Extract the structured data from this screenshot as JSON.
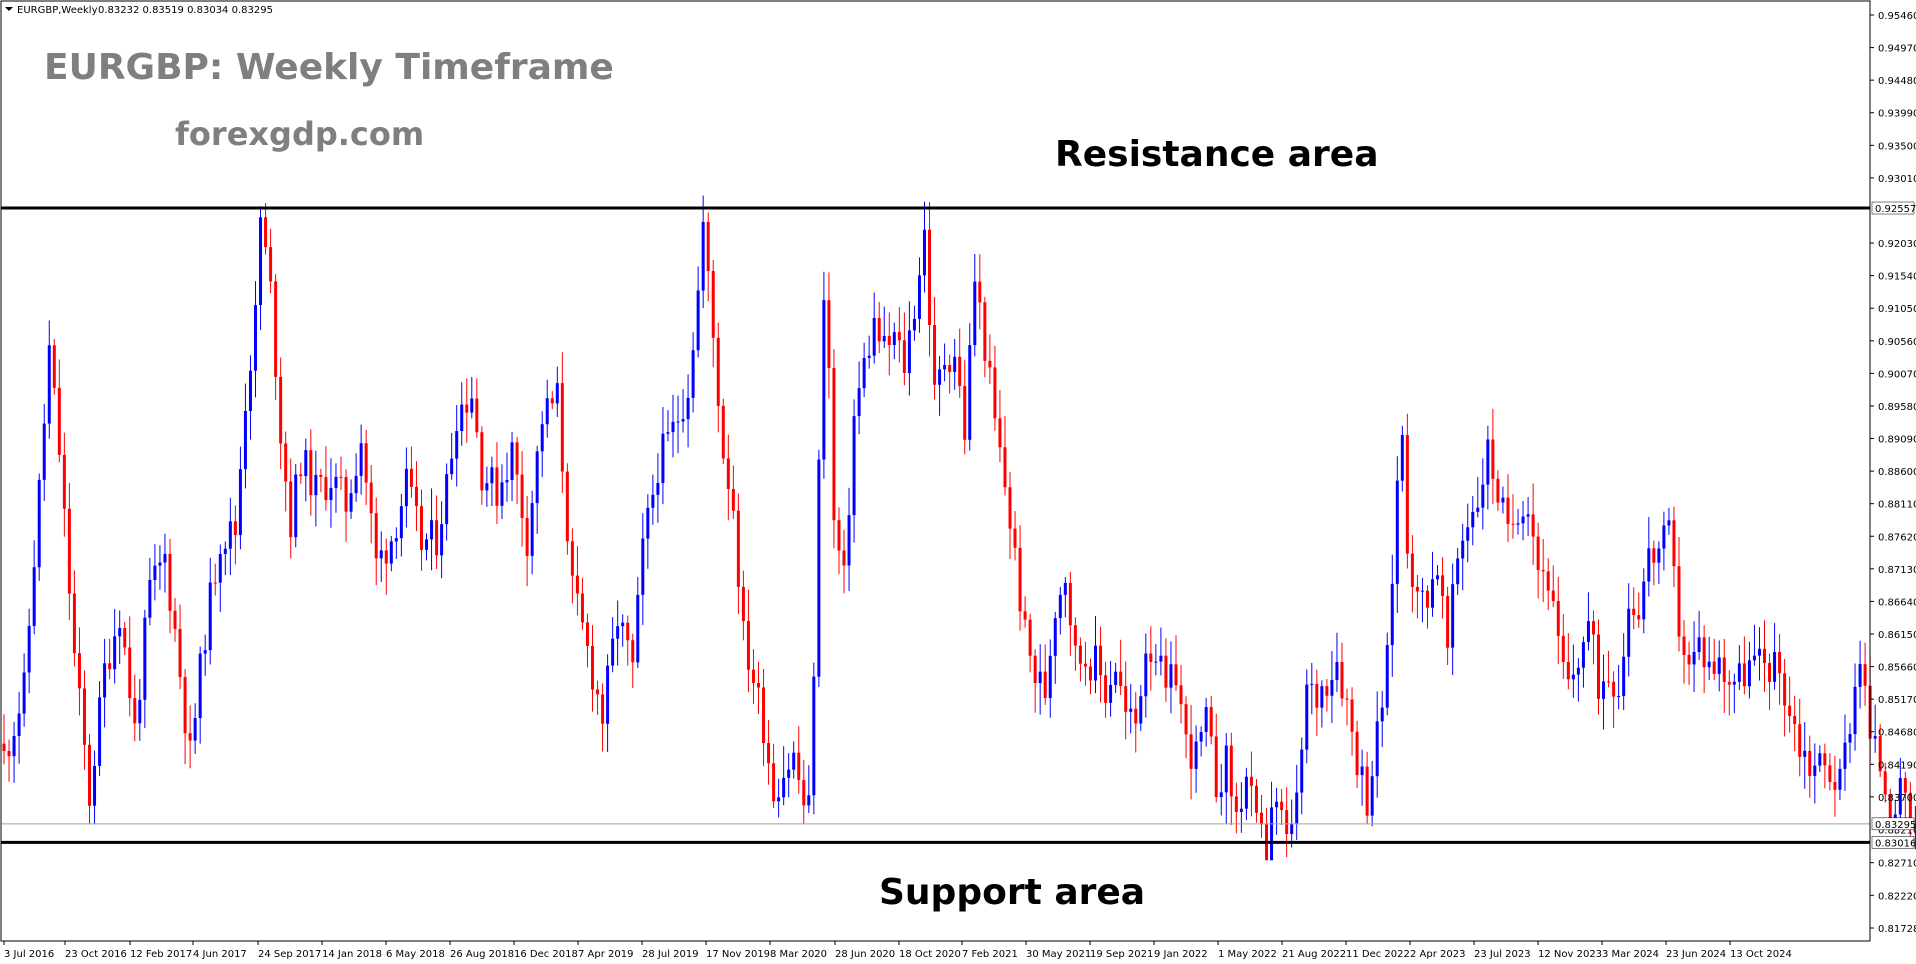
{
  "header": {
    "symbol_label": "EURGBP,Weekly",
    "ohlc_label": "0.83232 0.83519 0.83034 0.83295"
  },
  "annotations": {
    "title": "EURGBP: Weekly Timeframe",
    "website": "forexgdp.com",
    "resistance_label": "Resistance area",
    "support_label": "Support area"
  },
  "colors": {
    "bull": "#0000ff",
    "bear": "#ff0000",
    "level_line": "#000000",
    "current_price_line": "#a0a0a0",
    "frame": "#000000",
    "title_gray": "#7f7f7f"
  },
  "chart_data": {
    "type": "candlestick",
    "symbol": "EURGBP",
    "timeframe": "Weekly",
    "ylim": [
      0.81728,
      0.9546
    ],
    "y_ticks": [
      "0.95460",
      "0.94970",
      "0.94480",
      "0.93990",
      "0.93500",
      "0.93010",
      "0.92030",
      "0.91540",
      "0.91050",
      "0.90560",
      "0.90070",
      "0.89580",
      "0.89090",
      "0.88600",
      "0.88110",
      "0.87620",
      "0.87130",
      "0.86640",
      "0.86150",
      "0.85660",
      "0.85170",
      "0.84680",
      "0.84190",
      "0.83700",
      "0.82710",
      "0.82220",
      "0.81728"
    ],
    "x_ticks": [
      "3 Jul 2016",
      "23 Oct 2016",
      "12 Feb 2017",
      "4 Jun 2017",
      "24 Sep 2017",
      "14 Jan 2018",
      "6 May 2018",
      "26 Aug 2018",
      "16 Dec 2018",
      "7 Apr 2019",
      "28 Jul 2019",
      "17 Nov 2019",
      "8 Mar 2020",
      "28 Jun 2020",
      "18 Oct 2020",
      "7 Feb 2021",
      "30 May 2021",
      "19 Sep 2021",
      "9 Jan 2022",
      "1 May 2022",
      "21 Aug 2022",
      "11 Dec 2022",
      "2 Apr 2023",
      "23 Jul 2023",
      "12 Nov 2023",
      "3 Mar 2024",
      "23 Jun 2024",
      "13 Oct 2024"
    ],
    "levels": [
      {
        "name": "Resistance area",
        "value": 0.92557,
        "label": "0.92557"
      },
      {
        "name": "Support area",
        "value": 0.83016,
        "label": "0.83016"
      }
    ],
    "current_price": {
      "value": 0.83295,
      "label": "0.83295"
    },
    "extra_axis_label": "0.83210",
    "close_path": [
      [
        0,
        0.843
      ],
      [
        4,
        0.853
      ],
      [
        7,
        0.883
      ],
      [
        9,
        0.904
      ],
      [
        11,
        0.889
      ],
      [
        14,
        0.858
      ],
      [
        17,
        0.837
      ],
      [
        20,
        0.856
      ],
      [
        23,
        0.865
      ],
      [
        26,
        0.847
      ],
      [
        29,
        0.868
      ],
      [
        32,
        0.873
      ],
      [
        34,
        0.862
      ],
      [
        37,
        0.843
      ],
      [
        40,
        0.862
      ],
      [
        43,
        0.876
      ],
      [
        46,
        0.877
      ],
      [
        48,
        0.897
      ],
      [
        50,
        0.909
      ],
      [
        51,
        0.924
      ],
      [
        53,
        0.913
      ],
      [
        55,
        0.892
      ],
      [
        57,
        0.878
      ],
      [
        59,
        0.888
      ],
      [
        62,
        0.883
      ],
      [
        65,
        0.885
      ],
      [
        68,
        0.881
      ],
      [
        71,
        0.891
      ],
      [
        74,
        0.872
      ],
      [
        77,
        0.876
      ],
      [
        80,
        0.884
      ],
      [
        83,
        0.875
      ],
      [
        86,
        0.876
      ],
      [
        88,
        0.884
      ],
      [
        90,
        0.895
      ],
      [
        93,
        0.898
      ],
      [
        95,
        0.886
      ],
      [
        98,
        0.883
      ],
      [
        101,
        0.889
      ],
      [
        104,
        0.876
      ],
      [
        107,
        0.894
      ],
      [
        110,
        0.897
      ],
      [
        113,
        0.868
      ],
      [
        116,
        0.859
      ],
      [
        119,
        0.849
      ],
      [
        122,
        0.864
      ],
      [
        125,
        0.856
      ],
      [
        127,
        0.874
      ],
      [
        130,
        0.887
      ],
      [
        133,
        0.892
      ],
      [
        136,
        0.899
      ],
      [
        138,
        0.913
      ],
      [
        139,
        0.923
      ],
      [
        141,
        0.906
      ],
      [
        143,
        0.889
      ],
      [
        145,
        0.881
      ],
      [
        147,
        0.861
      ],
      [
        149,
        0.855
      ],
      [
        151,
        0.848
      ],
      [
        153,
        0.838
      ],
      [
        155,
        0.841
      ],
      [
        157,
        0.843
      ],
      [
        159,
        0.836
      ],
      [
        160,
        0.835
      ],
      [
        161,
        0.857
      ],
      [
        162,
        0.886
      ],
      [
        163,
        0.914
      ],
      [
        164,
        0.901
      ],
      [
        165,
        0.878
      ],
      [
        167,
        0.869
      ],
      [
        169,
        0.894
      ],
      [
        171,
        0.902
      ],
      [
        173,
        0.908
      ],
      [
        175,
        0.904
      ],
      [
        177,
        0.906
      ],
      [
        179,
        0.902
      ],
      [
        181,
        0.911
      ],
      [
        183,
        0.922
      ],
      [
        185,
        0.897
      ],
      [
        187,
        0.903
      ],
      [
        189,
        0.904
      ],
      [
        191,
        0.892
      ],
      [
        193,
        0.915
      ],
      [
        195,
        0.905
      ],
      [
        197,
        0.893
      ],
      [
        199,
        0.884
      ],
      [
        201,
        0.873
      ],
      [
        203,
        0.861
      ],
      [
        205,
        0.855
      ],
      [
        207,
        0.853
      ],
      [
        209,
        0.866
      ],
      [
        211,
        0.871
      ],
      [
        213,
        0.858
      ],
      [
        215,
        0.858
      ],
      [
        217,
        0.857
      ],
      [
        219,
        0.853
      ],
      [
        221,
        0.857
      ],
      [
        223,
        0.849
      ],
      [
        225,
        0.848
      ],
      [
        227,
        0.86
      ],
      [
        229,
        0.859
      ],
      [
        231,
        0.852
      ],
      [
        233,
        0.856
      ],
      [
        235,
        0.845
      ],
      [
        237,
        0.843
      ],
      [
        239,
        0.848
      ],
      [
        241,
        0.839
      ],
      [
        243,
        0.842
      ],
      [
        245,
        0.834
      ],
      [
        247,
        0.84
      ],
      [
        249,
        0.832
      ],
      [
        251,
        0.829
      ],
      [
        253,
        0.836
      ],
      [
        255,
        0.831
      ],
      [
        257,
        0.835
      ],
      [
        259,
        0.853
      ],
      [
        261,
        0.852
      ],
      [
        263,
        0.855
      ],
      [
        265,
        0.858
      ],
      [
        267,
        0.851
      ],
      [
        269,
        0.843
      ],
      [
        271,
        0.837
      ],
      [
        273,
        0.846
      ],
      [
        275,
        0.857
      ],
      [
        277,
        0.884
      ],
      [
        278,
        0.892
      ],
      [
        279,
        0.876
      ],
      [
        281,
        0.866
      ],
      [
        283,
        0.868
      ],
      [
        285,
        0.872
      ],
      [
        287,
        0.859
      ],
      [
        289,
        0.873
      ],
      [
        291,
        0.879
      ],
      [
        293,
        0.882
      ],
      [
        295,
        0.889
      ],
      [
        297,
        0.883
      ],
      [
        299,
        0.876
      ],
      [
        301,
        0.881
      ],
      [
        303,
        0.882
      ],
      [
        305,
        0.872
      ],
      [
        307,
        0.87
      ],
      [
        309,
        0.859
      ],
      [
        311,
        0.853
      ],
      [
        313,
        0.858
      ],
      [
        315,
        0.863
      ],
      [
        317,
        0.854
      ],
      [
        319,
        0.856
      ],
      [
        321,
        0.854
      ],
      [
        323,
        0.866
      ],
      [
        325,
        0.866
      ],
      [
        327,
        0.873
      ],
      [
        329,
        0.874
      ],
      [
        331,
        0.876
      ],
      [
        333,
        0.863
      ],
      [
        335,
        0.856
      ],
      [
        337,
        0.86
      ],
      [
        339,
        0.857
      ],
      [
        341,
        0.857
      ],
      [
        343,
        0.855
      ],
      [
        345,
        0.855
      ],
      [
        347,
        0.857
      ],
      [
        349,
        0.857
      ],
      [
        351,
        0.857
      ],
      [
        353,
        0.856
      ],
      [
        355,
        0.85
      ],
      [
        357,
        0.845
      ],
      [
        359,
        0.842
      ],
      [
        361,
        0.842
      ],
      [
        363,
        0.841
      ],
      [
        365,
        0.839
      ],
      [
        367,
        0.849
      ],
      [
        369,
        0.859
      ],
      [
        371,
        0.846
      ],
      [
        373,
        0.842
      ],
      [
        375,
        0.836
      ],
      [
        377,
        0.837
      ],
      [
        379,
        0.833
      ],
      [
        380,
        0.833
      ]
    ]
  }
}
